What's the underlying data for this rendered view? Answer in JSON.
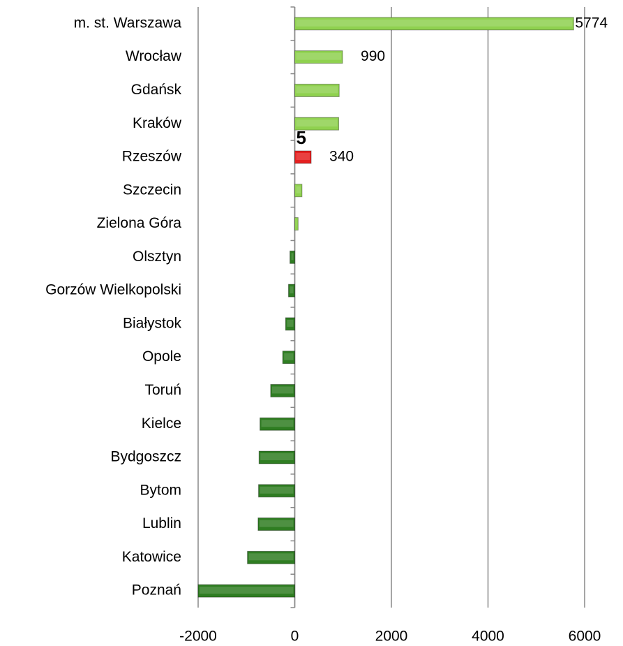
{
  "chart_data": {
    "type": "bar",
    "orientation": "horizontal",
    "categories": [
      "m. st. Warszawa",
      "Wrocław",
      "Gdańsk",
      "Kraków",
      "Rzeszów",
      "Szczecin",
      "Zielona Góra",
      "Olsztyn",
      "Gorzów Wielkopolski",
      "Białystok",
      "Opole",
      "Toruń",
      "Kielce",
      "Bydgoszcz",
      "Bytom",
      "Lublin",
      "Katowice",
      "Poznań"
    ],
    "values": [
      5774,
      990,
      920,
      910,
      340,
      150,
      70,
      -100,
      -130,
      -190,
      -250,
      -500,
      -720,
      -740,
      -750,
      -760,
      -980,
      -2000
    ],
    "colors": [
      "#8fd14f",
      "#8fd14f",
      "#8fd14f",
      "#8fd14f",
      "#e52020",
      "#8fd14f",
      "#8fd14f",
      "#2f7d22",
      "#2f7d22",
      "#2f7d22",
      "#2f7d22",
      "#2f7d22",
      "#2f7d22",
      "#2f7d22",
      "#2f7d22",
      "#2f7d22",
      "#2f7d22",
      "#2f7d22"
    ],
    "show_value_label": [
      true,
      true,
      false,
      false,
      true,
      false,
      false,
      false,
      false,
      false,
      false,
      false,
      false,
      false,
      false,
      false,
      false,
      false
    ],
    "annotations": [
      {
        "text": "5",
        "category": "Rzeszów"
      }
    ],
    "xlim": [
      -2000,
      6000
    ],
    "xticks": [
      -2000,
      0,
      2000,
      4000,
      6000
    ],
    "grid": true
  }
}
